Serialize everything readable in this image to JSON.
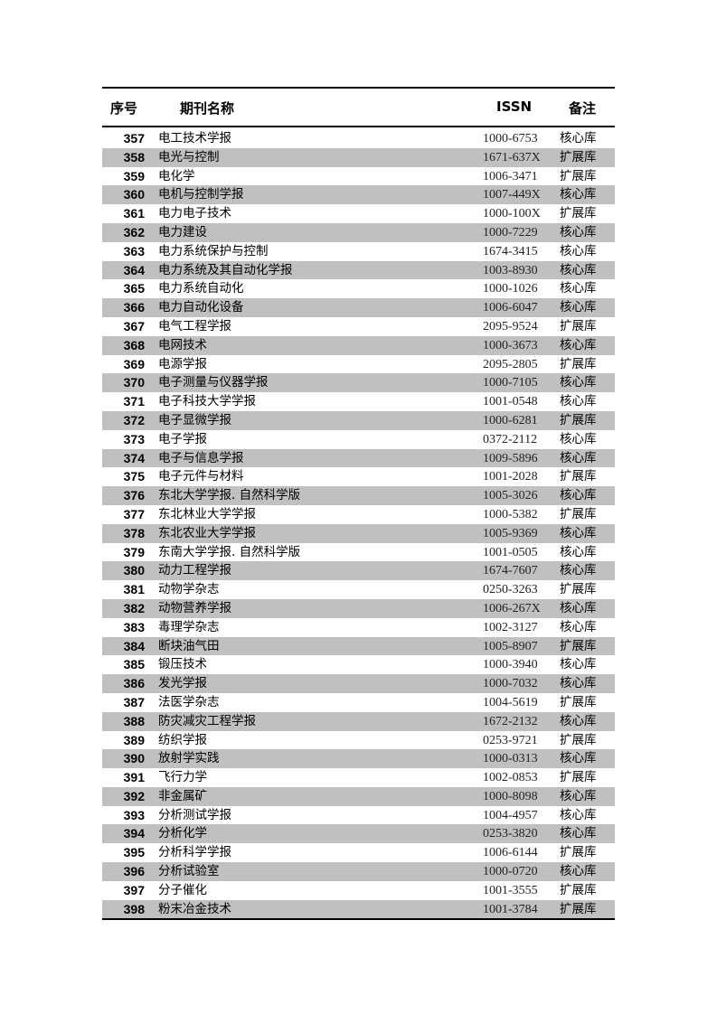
{
  "table": {
    "headers": {
      "no": "序号",
      "name": "期刊名称",
      "issn": "ISSN",
      "note": "备注"
    },
    "shade_color": "#c0c0c0",
    "rows": [
      [
        "357",
        "电工技术学报",
        "1000-6753",
        "核心库"
      ],
      [
        "358",
        "电光与控制",
        "1671-637X",
        "扩展库"
      ],
      [
        "359",
        "电化学",
        "1006-3471",
        "扩展库"
      ],
      [
        "360",
        "电机与控制学报",
        "1007-449X",
        "核心库"
      ],
      [
        "361",
        "电力电子技术",
        "1000-100X",
        "扩展库"
      ],
      [
        "362",
        "电力建设",
        "1000-7229",
        "核心库"
      ],
      [
        "363",
        "电力系统保护与控制",
        "1674-3415",
        "核心库"
      ],
      [
        "364",
        "电力系统及其自动化学报",
        "1003-8930",
        "核心库"
      ],
      [
        "365",
        "电力系统自动化",
        "1000-1026",
        "核心库"
      ],
      [
        "366",
        "电力自动化设备",
        "1006-6047",
        "核心库"
      ],
      [
        "367",
        "电气工程学报",
        "2095-9524",
        "扩展库"
      ],
      [
        "368",
        "电网技术",
        "1000-3673",
        "核心库"
      ],
      [
        "369",
        "电源学报",
        "2095-2805",
        "扩展库"
      ],
      [
        "370",
        "电子测量与仪器学报",
        "1000-7105",
        "核心库"
      ],
      [
        "371",
        "电子科技大学学报",
        "1001-0548",
        "核心库"
      ],
      [
        "372",
        "电子显微学报",
        "1000-6281",
        "扩展库"
      ],
      [
        "373",
        "电子学报",
        "0372-2112",
        "核心库"
      ],
      [
        "374",
        "电子与信息学报",
        "1009-5896",
        "核心库"
      ],
      [
        "375",
        "电子元件与材料",
        "1001-2028",
        "扩展库"
      ],
      [
        "376",
        "东北大学学报. 自然科学版",
        "1005-3026",
        "核心库"
      ],
      [
        "377",
        "东北林业大学学报",
        "1000-5382",
        "扩展库"
      ],
      [
        "378",
        "东北农业大学学报",
        "1005-9369",
        "核心库"
      ],
      [
        "379",
        "东南大学学报. 自然科学版",
        "1001-0505",
        "核心库"
      ],
      [
        "380",
        "动力工程学报",
        "1674-7607",
        "核心库"
      ],
      [
        "381",
        "动物学杂志",
        "0250-3263",
        "扩展库"
      ],
      [
        "382",
        "动物营养学报",
        "1006-267X",
        "核心库"
      ],
      [
        "383",
        "毒理学杂志",
        "1002-3127",
        "核心库"
      ],
      [
        "384",
        "断块油气田",
        "1005-8907",
        "扩展库"
      ],
      [
        "385",
        "锻压技术",
        "1000-3940",
        "核心库"
      ],
      [
        "386",
        "发光学报",
        "1000-7032",
        "核心库"
      ],
      [
        "387",
        "法医学杂志",
        "1004-5619",
        "扩展库"
      ],
      [
        "388",
        "防灾减灾工程学报",
        "1672-2132",
        "核心库"
      ],
      [
        "389",
        "纺织学报",
        "0253-9721",
        "扩展库"
      ],
      [
        "390",
        "放射学实践",
        "1000-0313",
        "核心库"
      ],
      [
        "391",
        "飞行力学",
        "1002-0853",
        "扩展库"
      ],
      [
        "392",
        "非金属矿",
        "1000-8098",
        "核心库"
      ],
      [
        "393",
        "分析测试学报",
        "1004-4957",
        "核心库"
      ],
      [
        "394",
        "分析化学",
        "0253-3820",
        "核心库"
      ],
      [
        "395",
        "分析科学学报",
        "1006-6144",
        "扩展库"
      ],
      [
        "396",
        "分析试验室",
        "1000-0720",
        "核心库"
      ],
      [
        "397",
        "分子催化",
        "1001-3555",
        "扩展库"
      ],
      [
        "398",
        "粉末冶金技术",
        "1001-3784",
        "扩展库"
      ]
    ]
  }
}
